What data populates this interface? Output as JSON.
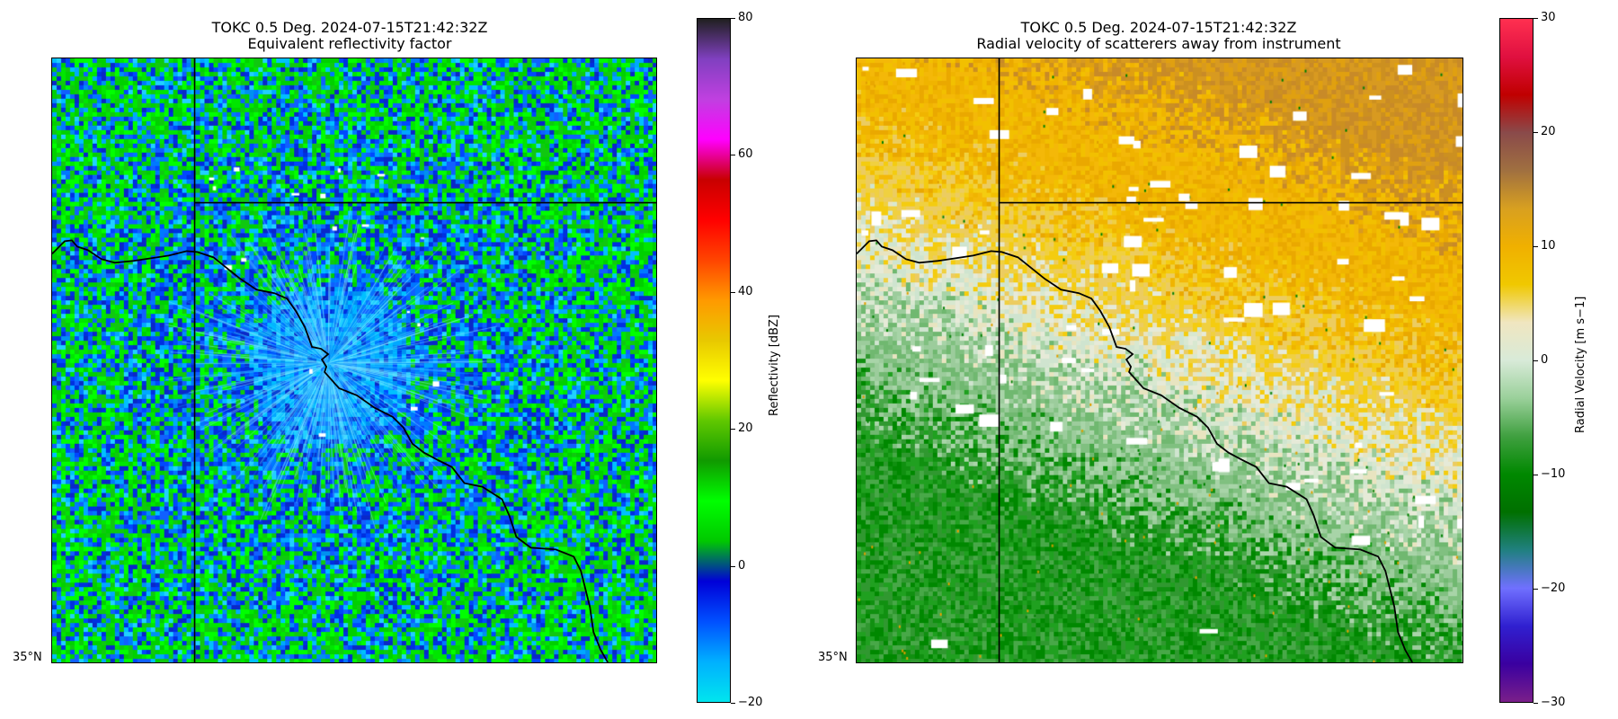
{
  "panels": [
    {
      "title_line1": "TOKC 0.5 Deg. 2024-07-15T21:42:32Z",
      "title_line2": "Equivalent reflectivity factor",
      "lat_label": "35°N",
      "field": "reflectivity",
      "colorbar": {
        "label": "Reflectivity [dBZ]",
        "min": -20,
        "max": 80,
        "ticks": [
          "80",
          "60",
          "40",
          "20",
          "0",
          "−20"
        ],
        "tick_values": [
          80,
          60,
          40,
          20,
          0,
          -20
        ],
        "colors": [
          "#00e5ee",
          "#00b0ff",
          "#0050ff",
          "#0000d8",
          "#00c800",
          "#00ff00",
          "#109a00",
          "#60c800",
          "#ffff00",
          "#e8c800",
          "#ff9900",
          "#ff4400",
          "#ff0000",
          "#c80000",
          "#ff00ff",
          "#c040e0",
          "#8040c0",
          "#202020"
        ]
      }
    },
    {
      "title_line1": "TOKC 0.5 Deg. 2024-07-15T21:42:32Z",
      "title_line2": "Radial velocity of scatterers away from instrument",
      "lat_label": "35°N",
      "field": "velocity",
      "colorbar": {
        "label": "Radial Velocity [m s−1]",
        "min": -30,
        "max": 30,
        "ticks": [
          "30",
          "20",
          "10",
          "0",
          "−10",
          "−20",
          "−30"
        ],
        "tick_values": [
          30,
          20,
          10,
          0,
          -10,
          -20,
          -30
        ],
        "colors": [
          "#7a1f8a",
          "#3a00a0",
          "#3020d0",
          "#7070ff",
          "#208080",
          "#007000",
          "#008800",
          "#40a040",
          "#9ad09a",
          "#d8ead8",
          "#f0e6c0",
          "#f0c800",
          "#f0b000",
          "#d8a020",
          "#a07040",
          "#8a4a4a",
          "#c00000",
          "#e01040",
          "#ff3050"
        ]
      }
    }
  ]
}
